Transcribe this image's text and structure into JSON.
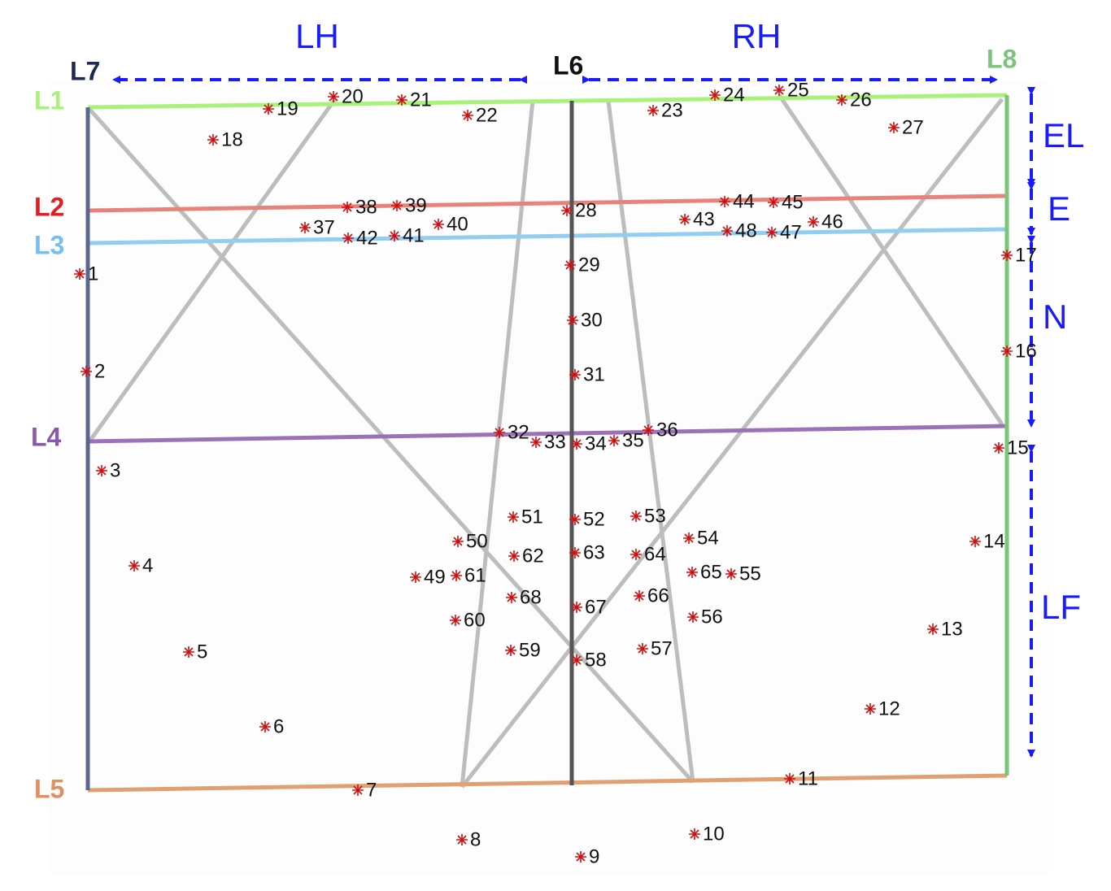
{
  "lines": {
    "L1": "L1",
    "L2": "L2",
    "L3": "L3",
    "L4": "L4",
    "L5": "L5",
    "L6": "L6",
    "L7": "L7",
    "L8": "L8"
  },
  "regions": {
    "LH": "LH",
    "RH": "RH",
    "EL": "EL",
    "E": "E",
    "N": "N",
    "LF": "LF"
  },
  "points": [
    "1",
    "2",
    "3",
    "4",
    "5",
    "6",
    "7",
    "8",
    "9",
    "10",
    "11",
    "12",
    "13",
    "14",
    "15",
    "16",
    "17",
    "18",
    "19",
    "20",
    "21",
    "22",
    "23",
    "24",
    "25",
    "26",
    "27",
    "28",
    "29",
    "30",
    "31",
    "32",
    "33",
    "34",
    "35",
    "36",
    "37",
    "38",
    "39",
    "40",
    "41",
    "42",
    "43",
    "44",
    "45",
    "46",
    "47",
    "48",
    "49",
    "50",
    "51",
    "52",
    "53",
    "54",
    "55",
    "56",
    "57",
    "58",
    "59",
    "60",
    "61",
    "62",
    "63",
    "64",
    "65",
    "66",
    "67",
    "68"
  ]
}
